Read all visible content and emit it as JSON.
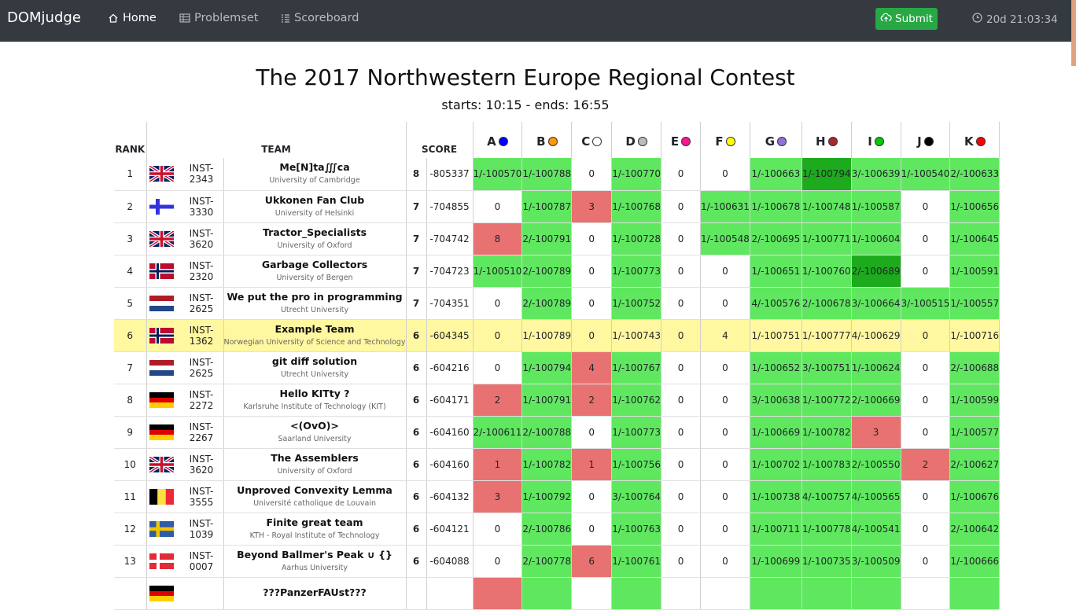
{
  "nav": {
    "brand": "DOMjudge",
    "home": "Home",
    "problemset": "Problemset",
    "scoreboard": "Scoreboard",
    "submit": "Submit",
    "clock": "20d 21:03:34"
  },
  "contest": {
    "title": "The 2017 Northwestern Europe Regional Contest",
    "times": "starts: 10:15 - ends: 16:55"
  },
  "headers": {
    "rank": "RANK",
    "team": "TEAM",
    "score": "SCORE"
  },
  "problems": [
    {
      "label": "A",
      "color": "#0000ff"
    },
    {
      "label": "B",
      "color": "#ff9900"
    },
    {
      "label": "C",
      "color": "#ffffff"
    },
    {
      "label": "D",
      "color": "#bbbbbb"
    },
    {
      "label": "E",
      "color": "#ff1493"
    },
    {
      "label": "F",
      "color": "#ffff00"
    },
    {
      "label": "G",
      "color": "#9370db"
    },
    {
      "label": "H",
      "color": "#a52a2a"
    },
    {
      "label": "I",
      "color": "#00cc00"
    },
    {
      "label": "J",
      "color": "#000000"
    },
    {
      "label": "K",
      "color": "#ff0000"
    }
  ],
  "rows": [
    {
      "rank": "1",
      "flag": "gb",
      "inst": "INST-2343",
      "name": "Me[N]ta∭ca",
      "uni": "University of Cambridge",
      "solved": "8",
      "penalty": "-805337",
      "highlight": false,
      "cells": [
        [
          "1/-100570",
          "s"
        ],
        [
          "1/-100788",
          "s"
        ],
        [
          "0",
          "n"
        ],
        [
          "1/-100770",
          "s"
        ],
        [
          "0",
          "n"
        ],
        [
          "0",
          "n"
        ],
        [
          "1/-100663",
          "s"
        ],
        [
          "1/-100794",
          "f"
        ],
        [
          "3/-100639",
          "s"
        ],
        [
          "1/-100540",
          "s"
        ],
        [
          "2/-100633",
          "s"
        ]
      ]
    },
    {
      "rank": "2",
      "flag": "fi",
      "inst": "INST-3330",
      "name": "Ukkonen Fan Club",
      "uni": "University of Helsinki",
      "solved": "7",
      "penalty": "-704855",
      "highlight": false,
      "cells": [
        [
          "0",
          "n"
        ],
        [
          "1/-100787",
          "s"
        ],
        [
          "3",
          "w"
        ],
        [
          "1/-100768",
          "s"
        ],
        [
          "0",
          "n"
        ],
        [
          "1/-100631",
          "s"
        ],
        [
          "1/-100678",
          "s"
        ],
        [
          "1/-100748",
          "s"
        ],
        [
          "1/-100587",
          "s"
        ],
        [
          "0",
          "n"
        ],
        [
          "1/-100656",
          "s"
        ]
      ]
    },
    {
      "rank": "3",
      "flag": "gb",
      "inst": "INST-3620",
      "name": "Tractor_Specialists",
      "uni": "University of Oxford",
      "solved": "7",
      "penalty": "-704742",
      "highlight": false,
      "cells": [
        [
          "8",
          "w"
        ],
        [
          "2/-100791",
          "s"
        ],
        [
          "0",
          "n"
        ],
        [
          "1/-100728",
          "s"
        ],
        [
          "0",
          "n"
        ],
        [
          "1/-100548",
          "s"
        ],
        [
          "2/-100695",
          "s"
        ],
        [
          "1/-100771",
          "s"
        ],
        [
          "1/-100604",
          "s"
        ],
        [
          "0",
          "n"
        ],
        [
          "1/-100645",
          "s"
        ]
      ]
    },
    {
      "rank": "4",
      "flag": "no",
      "inst": "INST-2320",
      "name": "Garbage Collectors",
      "uni": "University of Bergen",
      "solved": "7",
      "penalty": "-704723",
      "highlight": false,
      "cells": [
        [
          "1/-100510",
          "s"
        ],
        [
          "2/-100789",
          "s"
        ],
        [
          "0",
          "n"
        ],
        [
          "1/-100773",
          "s"
        ],
        [
          "0",
          "n"
        ],
        [
          "0",
          "n"
        ],
        [
          "1/-100651",
          "s"
        ],
        [
          "1/-100760",
          "s"
        ],
        [
          "2/-100689",
          "f"
        ],
        [
          "0",
          "n"
        ],
        [
          "1/-100591",
          "s"
        ]
      ]
    },
    {
      "rank": "5",
      "flag": "nl",
      "inst": "INST-2625",
      "name": "We put the pro in programming",
      "uni": "Utrecht University",
      "solved": "7",
      "penalty": "-704351",
      "highlight": false,
      "cells": [
        [
          "0",
          "n"
        ],
        [
          "2/-100789",
          "s"
        ],
        [
          "0",
          "n"
        ],
        [
          "1/-100752",
          "s"
        ],
        [
          "0",
          "n"
        ],
        [
          "0",
          "n"
        ],
        [
          "4/-100576",
          "s"
        ],
        [
          "2/-100678",
          "s"
        ],
        [
          "3/-100664",
          "s"
        ],
        [
          "3/-100515",
          "s"
        ],
        [
          "1/-100557",
          "s"
        ]
      ]
    },
    {
      "rank": "6",
      "flag": "no",
      "inst": "INST-1362",
      "name": "Example Team",
      "uni": "Norwegian University of Science and Technology",
      "solved": "6",
      "penalty": "-604345",
      "highlight": true,
      "cells": [
        [
          "0",
          "n"
        ],
        [
          "1/-100789",
          "s"
        ],
        [
          "0",
          "n"
        ],
        [
          "1/-100743",
          "s"
        ],
        [
          "0",
          "n"
        ],
        [
          "4",
          "w"
        ],
        [
          "1/-100751",
          "f"
        ],
        [
          "1/-100777",
          "s"
        ],
        [
          "4/-100629",
          "s"
        ],
        [
          "0",
          "n"
        ],
        [
          "1/-100716",
          "f"
        ]
      ]
    },
    {
      "rank": "7",
      "flag": "nl",
      "inst": "INST-2625",
      "name": "git diff solution",
      "uni": "Utrecht University",
      "solved": "6",
      "penalty": "-604216",
      "highlight": false,
      "cells": [
        [
          "0",
          "n"
        ],
        [
          "1/-100794",
          "s"
        ],
        [
          "4",
          "w"
        ],
        [
          "1/-100767",
          "s"
        ],
        [
          "0",
          "n"
        ],
        [
          "0",
          "n"
        ],
        [
          "1/-100652",
          "s"
        ],
        [
          "3/-100751",
          "s"
        ],
        [
          "1/-100624",
          "s"
        ],
        [
          "0",
          "n"
        ],
        [
          "2/-100688",
          "s"
        ]
      ]
    },
    {
      "rank": "8",
      "flag": "de",
      "inst": "INST-2272",
      "name": "Hello KITty ?",
      "uni": "Karlsruhe Institute of Technology (KIT)",
      "solved": "6",
      "penalty": "-604171",
      "highlight": false,
      "cells": [
        [
          "2",
          "w"
        ],
        [
          "1/-100791",
          "s"
        ],
        [
          "2",
          "w"
        ],
        [
          "1/-100762",
          "s"
        ],
        [
          "0",
          "n"
        ],
        [
          "0",
          "n"
        ],
        [
          "3/-100638",
          "s"
        ],
        [
          "1/-100772",
          "s"
        ],
        [
          "2/-100669",
          "s"
        ],
        [
          "0",
          "n"
        ],
        [
          "1/-100599",
          "s"
        ]
      ]
    },
    {
      "rank": "9",
      "flag": "de",
      "inst": "INST-2267",
      "name": "<(OvO)>",
      "uni": "Saarland University",
      "solved": "6",
      "penalty": "-604160",
      "highlight": false,
      "cells": [
        [
          "2/-100611",
          "s"
        ],
        [
          "2/-100788",
          "s"
        ],
        [
          "0",
          "n"
        ],
        [
          "1/-100773",
          "s"
        ],
        [
          "0",
          "n"
        ],
        [
          "0",
          "n"
        ],
        [
          "1/-100669",
          "s"
        ],
        [
          "1/-100782",
          "s"
        ],
        [
          "3",
          "w"
        ],
        [
          "0",
          "n"
        ],
        [
          "1/-100577",
          "s"
        ]
      ]
    },
    {
      "rank": "10",
      "flag": "gb",
      "inst": "INST-3620",
      "name": "The Assemblers",
      "uni": "University of Oxford",
      "solved": "6",
      "penalty": "-604160",
      "highlight": false,
      "cells": [
        [
          "1",
          "w"
        ],
        [
          "1/-100782",
          "s"
        ],
        [
          "1",
          "w"
        ],
        [
          "1/-100756",
          "s"
        ],
        [
          "0",
          "n"
        ],
        [
          "0",
          "n"
        ],
        [
          "1/-100702",
          "s"
        ],
        [
          "1/-100783",
          "s"
        ],
        [
          "2/-100550",
          "s"
        ],
        [
          "2",
          "w"
        ],
        [
          "2/-100627",
          "s"
        ]
      ]
    },
    {
      "rank": "11",
      "flag": "be",
      "inst": "INST-3555",
      "name": "Unproved Convexity Lemma",
      "uni": "Université catholique de Louvain",
      "solved": "6",
      "penalty": "-604132",
      "highlight": false,
      "cells": [
        [
          "3",
          "w"
        ],
        [
          "1/-100792",
          "s"
        ],
        [
          "0",
          "n"
        ],
        [
          "3/-100764",
          "s"
        ],
        [
          "0",
          "n"
        ],
        [
          "0",
          "n"
        ],
        [
          "1/-100738",
          "s"
        ],
        [
          "4/-100757",
          "s"
        ],
        [
          "4/-100565",
          "s"
        ],
        [
          "0",
          "n"
        ],
        [
          "1/-100676",
          "s"
        ]
      ]
    },
    {
      "rank": "12",
      "flag": "se",
      "inst": "INST-1039",
      "name": "Finite great team",
      "uni": "KTH - Royal Institute of Technology",
      "solved": "6",
      "penalty": "-604121",
      "highlight": false,
      "cells": [
        [
          "0",
          "n"
        ],
        [
          "2/-100786",
          "s"
        ],
        [
          "0",
          "n"
        ],
        [
          "1/-100763",
          "s"
        ],
        [
          "0",
          "n"
        ],
        [
          "0",
          "n"
        ],
        [
          "1/-100711",
          "s"
        ],
        [
          "1/-100778",
          "s"
        ],
        [
          "4/-100541",
          "s"
        ],
        [
          "0",
          "n"
        ],
        [
          "2/-100642",
          "s"
        ]
      ]
    },
    {
      "rank": "13",
      "flag": "dk",
      "inst": "INST-0007",
      "name": "Beyond Ballmer's Peak ∪ {}",
      "uni": "Aarhus University",
      "solved": "6",
      "penalty": "-604088",
      "highlight": false,
      "cells": [
        [
          "0",
          "n"
        ],
        [
          "2/-100778",
          "s"
        ],
        [
          "6",
          "w"
        ],
        [
          "1/-100761",
          "s"
        ],
        [
          "0",
          "n"
        ],
        [
          "0",
          "n"
        ],
        [
          "1/-100699",
          "s"
        ],
        [
          "1/-100735",
          "s"
        ],
        [
          "3/-100509",
          "s"
        ],
        [
          "0",
          "n"
        ],
        [
          "1/-100666",
          "s"
        ]
      ]
    },
    {
      "rank": "",
      "flag": "de",
      "inst": "",
      "name": "???PanzerFAUst???",
      "uni": "",
      "solved": "",
      "penalty": "",
      "highlight": false,
      "cells": [
        [
          "",
          "w"
        ],
        [
          "",
          "s"
        ],
        [
          "",
          "n"
        ],
        [
          "",
          "s"
        ],
        [
          "",
          "n"
        ],
        [
          "",
          "n"
        ],
        [
          "",
          "s"
        ],
        [
          "",
          "s"
        ],
        [
          "",
          "s"
        ],
        [
          "",
          "n"
        ],
        [
          "",
          "s"
        ]
      ]
    }
  ]
}
